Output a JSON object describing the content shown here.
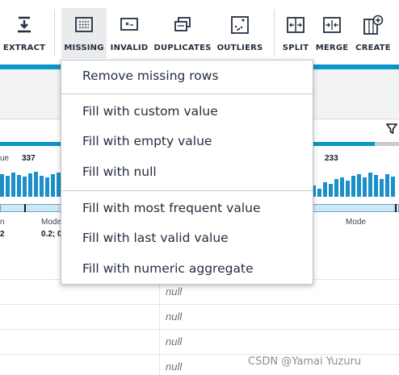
{
  "toolbar": {
    "items": [
      {
        "label": "EXTRACT",
        "icon": "extract-icon"
      },
      {
        "label": "MISSING",
        "icon": "missing-icon",
        "active": true
      },
      {
        "label": "INVALID",
        "icon": "invalid-icon"
      },
      {
        "label": "DUPLICATES",
        "icon": "duplicates-icon"
      },
      {
        "label": "OUTLIERS",
        "icon": "outliers-icon"
      },
      {
        "label": "SPLIT",
        "icon": "split-icon"
      },
      {
        "label": "MERGE",
        "icon": "merge-icon"
      },
      {
        "label": "CREATE",
        "icon": "create-icon"
      }
    ]
  },
  "colors": {
    "accent": "#0a96c8",
    "histogram": "#1a8fc9",
    "active_bg": "#e9ebed"
  },
  "columns": {
    "left": {
      "stat_label": "ue",
      "stat_value": "337",
      "mode_label": "Mode",
      "mode_value": "0.2; 0",
      "min_label": "n",
      "min_value": "2"
    },
    "right": {
      "stat_value": "233",
      "mode_label": "Mode"
    }
  },
  "menu": {
    "items": [
      "Remove missing rows",
      "Fill with custom value",
      "Fill with empty value",
      "Fill with null",
      "Fill with most frequent value",
      "Fill with last valid value",
      "Fill with numeric aggregate"
    ]
  },
  "grid": {
    "cells": [
      "null",
      "null",
      "null",
      "null"
    ]
  },
  "watermark": "CSDN @Yamai Yuzuru"
}
